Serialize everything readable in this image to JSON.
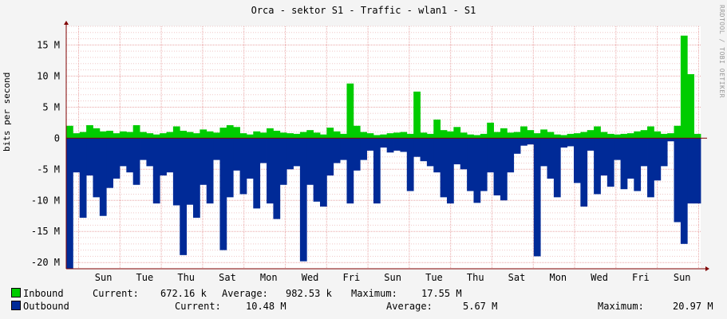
{
  "title": "Orca - sektor S1 - Traffic - wlan1 - S1",
  "watermark": "RRDTOOL / TOBI OETIKER",
  "ylabel": "bits per second",
  "colors": {
    "inbound": "#00cc00",
    "outbound": "#002a97",
    "grid_major": "#e9a6a6",
    "grid_minor": "#f0c8c8",
    "axis": "#800000",
    "background": "#ffffff"
  },
  "legend": {
    "inbound": {
      "label": "Inbound",
      "current_label": "Current:",
      "current": "672.16 k",
      "average_label": "Average:",
      "average": "982.53 k",
      "maximum_label": "Maximum:",
      "maximum": "17.55 M"
    },
    "outbound": {
      "label": "Outbound",
      "current_label": "Current:",
      "current": "10.48 M",
      "average_label": "Average:",
      "average": "5.67 M",
      "maximum_label": "Maximum:",
      "maximum": "20.97 M"
    }
  },
  "chart_data": {
    "type": "area",
    "title": "Orca - sektor S1 - Traffic - wlan1 - S1",
    "ylabel": "bits per second",
    "ylim": [
      -21,
      18
    ],
    "yticks": [
      -20,
      -15,
      -10,
      -5,
      0,
      5,
      10,
      15
    ],
    "ytick_labels": [
      "-20 M",
      "-15 M",
      "-10 M",
      "-5 M",
      "0",
      "5 M",
      "10 M",
      "15 M"
    ],
    "xtick_labels": [
      "Sun",
      "Tue",
      "Thu",
      "Sat",
      "Mon",
      "Wed",
      "Fri",
      "Sun",
      "Tue",
      "Thu",
      "Sat",
      "Mon",
      "Wed",
      "Fri",
      "Sun"
    ],
    "x_unit": "days",
    "x_range_days": [
      0,
      15.35
    ],
    "series": [
      {
        "name": "Inbound",
        "color": "#00cc00",
        "values": [
          2.0,
          0.8,
          1.0,
          2.1,
          1.6,
          1.1,
          1.2,
          0.8,
          1.1,
          1.0,
          2.1,
          1.0,
          0.8,
          0.6,
          0.8,
          1.0,
          1.9,
          1.2,
          1.0,
          0.8,
          1.4,
          1.1,
          0.9,
          1.7,
          2.1,
          1.8,
          0.8,
          0.6,
          1.1,
          0.9,
          1.6,
          1.2,
          0.9,
          0.8,
          0.7,
          1.0,
          1.3,
          0.9,
          0.6,
          1.7,
          1.1,
          0.7,
          8.8,
          2.0,
          1.0,
          0.8,
          0.5,
          0.6,
          0.8,
          0.9,
          1.0,
          0.7,
          7.5,
          0.9,
          0.7,
          3.0,
          1.3,
          1.1,
          1.8,
          0.9,
          0.6,
          0.5,
          0.7,
          2.5,
          1.0,
          1.6,
          0.9,
          1.0,
          1.9,
          1.3,
          0.8,
          1.4,
          1.0,
          0.6,
          0.5,
          0.7,
          0.8,
          1.0,
          1.3,
          1.9,
          1.0,
          0.7,
          0.6,
          0.7,
          0.8,
          1.1,
          1.3,
          1.9,
          1.1,
          0.7,
          0.8,
          2.0,
          16.5,
          10.3,
          0.7
        ],
        "outbound": null
      },
      {
        "name": "Outbound",
        "color": "#002a97",
        "values": [
          -21.0,
          -5.5,
          -12.8,
          -6.0,
          -9.5,
          -12.5,
          -8.0,
          -6.5,
          -4.5,
          -5.5,
          -7.5,
          -3.5,
          -4.5,
          -10.5,
          -6.0,
          -5.5,
          -10.8,
          -18.8,
          -10.7,
          -12.8,
          -7.5,
          -10.5,
          -3.5,
          -18.0,
          -9.5,
          -5.2,
          -9.0,
          -6.5,
          -11.3,
          -4.0,
          -10.5,
          -13.0,
          -7.5,
          -5.0,
          -4.5,
          -19.8,
          -7.5,
          -10.2,
          -11.0,
          -6.0,
          -4.0,
          -3.5,
          -10.5,
          -5.2,
          -3.5,
          -2.0,
          -10.5,
          -1.5,
          -2.3,
          -2.0,
          -2.2,
          -8.5,
          -3.0,
          -3.7,
          -4.5,
          -5.5,
          -9.5,
          -10.5,
          -4.2,
          -5.0,
          -8.5,
          -10.4,
          -8.5,
          -5.5,
          -9.2,
          -10.0,
          -5.5,
          -2.5,
          -1.2,
          -1.0,
          -19.0,
          -4.5,
          -6.5,
          -9.5,
          -1.5,
          -1.3,
          -7.2,
          -11.0,
          -2.0,
          -9.0,
          -6.0,
          -7.8,
          -3.5,
          -8.2,
          -6.5,
          -8.5,
          -4.5,
          -9.5,
          -6.8,
          -4.5,
          -0.5,
          -13.5,
          -17.0,
          -10.5,
          -10.5
        ]
      }
    ],
    "grid": true
  }
}
